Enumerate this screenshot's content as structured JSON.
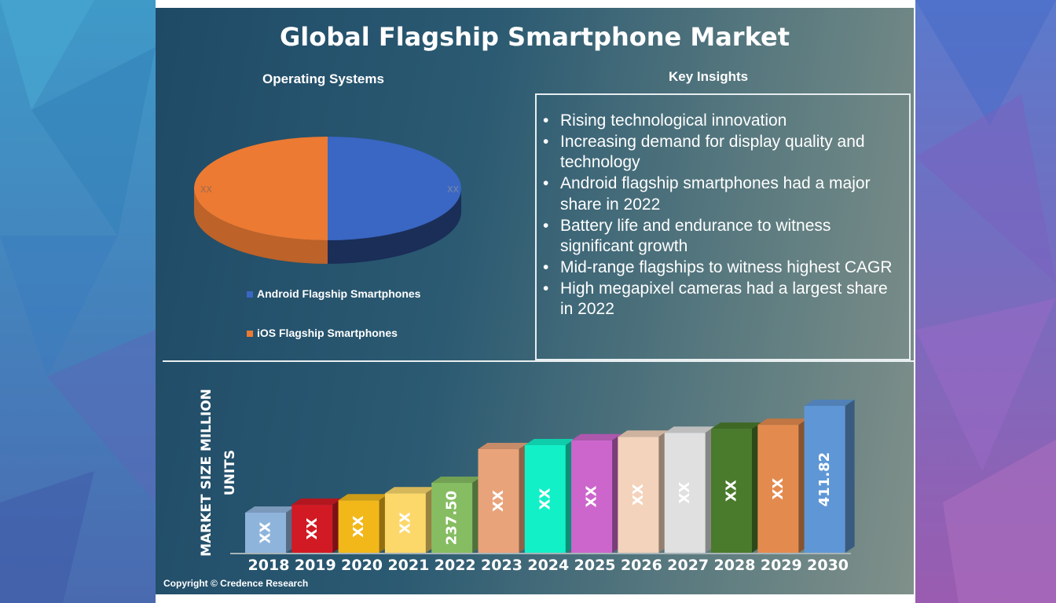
{
  "title": "Global Flagship Smartphone Market",
  "pie_section": {
    "heading": "Operating Systems"
  },
  "insights_section": {
    "heading": "Key Insights",
    "items": [
      "Rising technological innovation",
      "Increasing demand for display quality and technology",
      "Android flagship smartphones had a major share in 2022",
      "Battery life and endurance to witness significant growth",
      "Mid-range flagships to witness highest CAGR",
      "High megapixel cameras had a largest share in 2022"
    ]
  },
  "copyright": "Copyright © Credence Research",
  "chart_data": [
    {
      "type": "pie",
      "style": "3d",
      "slices": [
        {
          "name": "Android Flagship Smartphones",
          "value": 50,
          "label": "XX",
          "color": "#3a66c4"
        },
        {
          "name": "iOS Flagship Smartphones",
          "value": 50,
          "label": "XX",
          "color": "#ec7a32"
        }
      ],
      "legend": "bottom"
    },
    {
      "type": "bar",
      "style": "3d",
      "ylabel": "MARKET SIZE MILLION UNITS",
      "categories": [
        "2018",
        "2019",
        "2020",
        "2021",
        "2022",
        "2023",
        "2024",
        "2025",
        "2026",
        "2027",
        "2028",
        "2029",
        "2030"
      ],
      "values": [
        170,
        188,
        198,
        214,
        237.5,
        314,
        323,
        334,
        342,
        351,
        360,
        369,
        411.82
      ],
      "data_labels": [
        "XX",
        "XX",
        "XX",
        "XX",
        "237.50",
        "XX",
        "XX",
        "XX",
        "XX",
        "XX",
        "XX",
        "XX",
        "411.82"
      ],
      "colors": [
        "#8fb4dc",
        "#d11a24",
        "#f2b81a",
        "#fcd86a",
        "#86bd62",
        "#e9a37a",
        "#12f0c8",
        "#cc66cc",
        "#f3d3bb",
        "#e0e0e0",
        "#4a7a2c",
        "#e38b4f",
        "#5f97d6"
      ],
      "grid": false
    }
  ]
}
